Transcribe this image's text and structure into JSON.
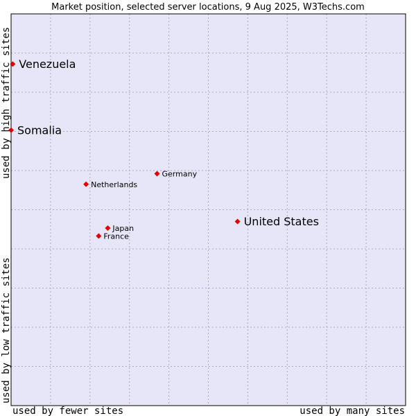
{
  "chart_data": {
    "type": "scatter",
    "title": "Market position, selected server locations, 9 Aug 2025, W3Techs.com",
    "xlabel_low": "used by fewer sites",
    "xlabel_high": "used by many sites",
    "ylabel_low": "used by low traffic sites",
    "ylabel_high": "used by high traffic sites",
    "xlim": [
      0,
      100
    ],
    "ylim": [
      0,
      100
    ],
    "grid": true,
    "points": [
      {
        "name": "Venezuela",
        "x": 0.4,
        "y": 87.2,
        "emphasis": "large"
      },
      {
        "name": "Somalia",
        "x": 0.0,
        "y": 70.3,
        "emphasis": "large"
      },
      {
        "name": "Germany",
        "x": 37.0,
        "y": 59.2,
        "emphasis": "small"
      },
      {
        "name": "Netherlands",
        "x": 19.0,
        "y": 56.5,
        "emphasis": "small"
      },
      {
        "name": "United States",
        "x": 57.4,
        "y": 47.0,
        "emphasis": "large"
      },
      {
        "name": "Japan",
        "x": 24.5,
        "y": 45.3,
        "emphasis": "small"
      },
      {
        "name": "France",
        "x": 22.2,
        "y": 43.3,
        "emphasis": "small"
      }
    ]
  },
  "colors": {
    "plot_background": "#e6e6f8",
    "grid": "#a9a9c7",
    "marker": "#e00000",
    "text": "#000000"
  }
}
